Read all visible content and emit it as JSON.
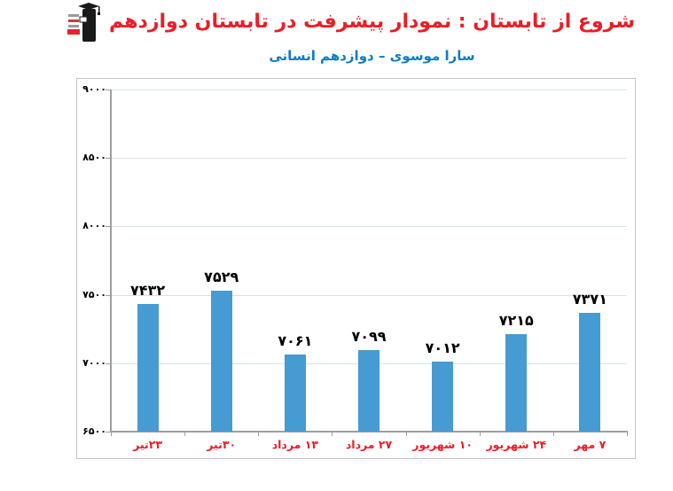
{
  "header": {
    "title": "شروع از تابستان : نمودار پیشرفت در تابستان دوازدهم",
    "subtitle": "سارا موسوی – دوازدهم انسانی",
    "title_color": "#EE1C25",
    "subtitle_color": "#0E7DC2",
    "logo": {
      "name": "kanoon-ghalamchi-graduate-logo",
      "figure_color": "#1A1A1A",
      "accent_color": "#E8212E",
      "text_line_color": "#8A8A8A"
    }
  },
  "chart_data": {
    "type": "bar",
    "title": "",
    "categories": [
      "۲۳تیر",
      "۳۰تیر",
      "۱۳ مرداد",
      "۲۷ مرداد",
      "۱۰ شهریور",
      "۲۴ شهریور",
      "۷ مهر"
    ],
    "values": [
      7432,
      7529,
      7061,
      7099,
      7012,
      7215,
      7371
    ],
    "value_labels": [
      "۷۴۳۲",
      "۷۵۲۹",
      "۷۰۶۱",
      "۷۰۹۹",
      "۷۰۱۲",
      "۷۲۱۵",
      "۷۳۷۱"
    ],
    "ytick_values": [
      9000,
      8500,
      8000,
      7500,
      7000,
      6500
    ],
    "ytick_labels": [
      "۹۰۰۰",
      "۸۵۰۰",
      "۸۰۰۰",
      "۷۵۰۰",
      "۷۰۰۰",
      "۶۵۰۰"
    ],
    "ylim": [
      6500,
      9000
    ],
    "xlabel": "",
    "ylabel": "",
    "grid": true,
    "legend": false,
    "bar_color": "#469BD2",
    "gridline_color": "#D4E3F1",
    "axis_color": "#9E9E9E",
    "category_label_color": "#EE1C25",
    "value_label_color": "#000000"
  }
}
